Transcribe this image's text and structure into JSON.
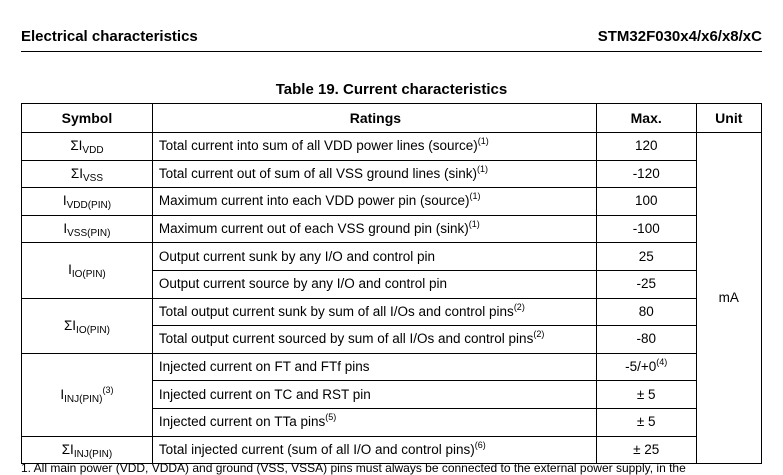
{
  "header": {
    "section_title": "Electrical characteristics",
    "part_number": "STM32F030x4/x6/x8/xC"
  },
  "table": {
    "caption": "Table 19. Current characteristics",
    "columns": {
      "symbol": "Symbol",
      "ratings": "Ratings",
      "max": "Max.",
      "unit": "Unit"
    },
    "unit_value": "mA",
    "symbols": [
      {
        "prefix": "ΣI",
        "sub": "VDD",
        "sup": ""
      },
      {
        "prefix": "ΣI",
        "sub": "VSS",
        "sup": ""
      },
      {
        "prefix": "I",
        "sub": "VDD(PIN)",
        "sup": ""
      },
      {
        "prefix": "I",
        "sub": "VSS(PIN)",
        "sup": ""
      },
      {
        "prefix": "I",
        "sub": "IO(PIN)",
        "sup": ""
      },
      {
        "prefix": "ΣI",
        "sub": "IO(PIN)",
        "sup": ""
      },
      {
        "prefix": "I",
        "sub": "INJ(PIN)",
        "sup": "(3)"
      },
      {
        "prefix": "ΣI",
        "sub": "INJ(PIN)",
        "sup": ""
      }
    ],
    "rows": [
      {
        "rating": "Total current into sum of all VDD power lines (source)",
        "note": "(1)",
        "max": "120",
        "max_sup": ""
      },
      {
        "rating": "Total current out of sum of all VSS ground lines (sink)",
        "note": "(1)",
        "max": "-120",
        "max_sup": ""
      },
      {
        "rating": "Maximum current into each VDD power pin (source)",
        "note": "(1)",
        "max": "100",
        "max_sup": ""
      },
      {
        "rating": "Maximum current out of each VSS ground pin (sink)",
        "note": "(1)",
        "max": "-100",
        "max_sup": ""
      },
      {
        "rating": "Output current sunk by any I/O and control pin",
        "note": "",
        "max": "25",
        "max_sup": ""
      },
      {
        "rating": "Output current source by any I/O and control pin",
        "note": "",
        "max": "-25",
        "max_sup": ""
      },
      {
        "rating": "Total output current sunk by sum of all I/Os and control pins",
        "note": "(2)",
        "max": "80",
        "max_sup": ""
      },
      {
        "rating": "Total output current sourced by sum of all I/Os and control pins",
        "note": "(2)",
        "max": "-80",
        "max_sup": ""
      },
      {
        "rating": "Injected current on FT and FTf pins",
        "note": "",
        "max": "-5/+0",
        "max_sup": "(4)"
      },
      {
        "rating": "Injected current on TC and RST pin",
        "note": "",
        "max": "± 5",
        "max_sup": ""
      },
      {
        "rating": "Injected current on TTa pins",
        "note": "(5)",
        "max": "± 5",
        "max_sup": ""
      },
      {
        "rating": "Total injected current (sum of all I/O and control pins)",
        "note": "(6)",
        "max": "± 25",
        "max_sup": ""
      }
    ]
  },
  "footnote": "1.   All main power (VDD, VDDA) and ground (VSS, VSSA) pins must always be connected to the external power supply, in the"
}
